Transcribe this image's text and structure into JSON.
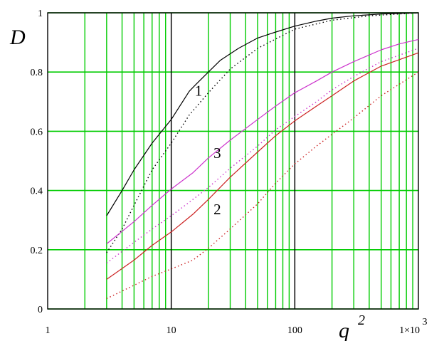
{
  "chart_data": {
    "type": "line",
    "title": "",
    "xlabel": "q",
    "xlabel_superscript": "2",
    "ylabel": "D",
    "xscale": "log",
    "xlim": [
      1,
      1000
    ],
    "ylim": [
      0,
      1
    ],
    "grid": true,
    "grid_color": "#00cc00",
    "decade_line_color": "#000000",
    "x_tick_labels": [
      "1",
      "10",
      "100",
      "1×10"
    ],
    "x_tick_label_last_superscript": "3",
    "y_tick_labels": [
      "0",
      "0.2",
      "0.4",
      "0.6",
      "0.8",
      "1"
    ],
    "y_ticks": [
      0,
      0.2,
      0.4,
      0.6,
      0.8,
      1
    ],
    "curve_labels": [
      {
        "text": "1",
        "x": 15.5,
        "y": 0.72
      },
      {
        "text": "3",
        "x": 22,
        "y": 0.51
      },
      {
        "text": "2",
        "x": 22,
        "y": 0.32
      }
    ],
    "series": [
      {
        "label": "1",
        "style": "solid",
        "color": "#000000",
        "points": [
          [
            3,
            0.315
          ],
          [
            4,
            0.4
          ],
          [
            5,
            0.47
          ],
          [
            7,
            0.56
          ],
          [
            10,
            0.64
          ],
          [
            14,
            0.735
          ],
          [
            16,
            0.76
          ],
          [
            20,
            0.8
          ],
          [
            25,
            0.84
          ],
          [
            35,
            0.88
          ],
          [
            50,
            0.915
          ],
          [
            70,
            0.935
          ],
          [
            100,
            0.955
          ],
          [
            150,
            0.972
          ],
          [
            200,
            0.982
          ],
          [
            300,
            0.99
          ],
          [
            500,
            0.996
          ],
          [
            1000,
            1.0
          ]
        ]
      },
      {
        "label": "1",
        "style": "dotted",
        "color": "#000000",
        "points": [
          [
            3,
            0.19
          ],
          [
            4,
            0.27
          ],
          [
            5,
            0.35
          ],
          [
            7,
            0.47
          ],
          [
            10,
            0.56
          ],
          [
            14,
            0.655
          ],
          [
            20,
            0.73
          ],
          [
            30,
            0.81
          ],
          [
            50,
            0.88
          ],
          [
            100,
            0.945
          ],
          [
            200,
            0.975
          ],
          [
            400,
            0.99
          ],
          [
            1000,
            1.0
          ]
        ]
      },
      {
        "label": "3",
        "style": "solid",
        "color": "#cc33cc",
        "points": [
          [
            3,
            0.22
          ],
          [
            5,
            0.295
          ],
          [
            7,
            0.35
          ],
          [
            10,
            0.405
          ],
          [
            15,
            0.46
          ],
          [
            20,
            0.51
          ],
          [
            30,
            0.57
          ],
          [
            50,
            0.64
          ],
          [
            70,
            0.685
          ],
          [
            100,
            0.73
          ],
          [
            150,
            0.77
          ],
          [
            200,
            0.8
          ],
          [
            300,
            0.835
          ],
          [
            500,
            0.875
          ],
          [
            700,
            0.895
          ],
          [
            1000,
            0.91
          ]
        ]
      },
      {
        "label": "3",
        "style": "dotted",
        "color": "#cc33cc",
        "points": [
          [
            3,
            0.155
          ],
          [
            5,
            0.225
          ],
          [
            7,
            0.27
          ],
          [
            10,
            0.315
          ],
          [
            15,
            0.37
          ],
          [
            20,
            0.41
          ],
          [
            30,
            0.475
          ],
          [
            50,
            0.55
          ],
          [
            70,
            0.605
          ],
          [
            100,
            0.65
          ],
          [
            150,
            0.7
          ],
          [
            200,
            0.74
          ],
          [
            300,
            0.785
          ],
          [
            500,
            0.835
          ],
          [
            1000,
            0.88
          ]
        ]
      },
      {
        "label": "2",
        "style": "solid",
        "color": "#cc2222",
        "points": [
          [
            3,
            0.1
          ],
          [
            5,
            0.165
          ],
          [
            7,
            0.215
          ],
          [
            10,
            0.26
          ],
          [
            15,
            0.32
          ],
          [
            20,
            0.37
          ],
          [
            30,
            0.445
          ],
          [
            50,
            0.53
          ],
          [
            70,
            0.585
          ],
          [
            100,
            0.635
          ],
          [
            150,
            0.685
          ],
          [
            200,
            0.72
          ],
          [
            300,
            0.77
          ],
          [
            500,
            0.82
          ],
          [
            1000,
            0.865
          ]
        ]
      },
      {
        "label": "2",
        "style": "dotted",
        "color": "#cc2222",
        "points": [
          [
            3,
            0.035
          ],
          [
            5,
            0.08
          ],
          [
            7,
            0.11
          ],
          [
            10,
            0.135
          ],
          [
            15,
            0.165
          ],
          [
            20,
            0.205
          ],
          [
            30,
            0.27
          ],
          [
            50,
            0.355
          ],
          [
            70,
            0.425
          ],
          [
            100,
            0.49
          ],
          [
            150,
            0.55
          ],
          [
            200,
            0.59
          ],
          [
            300,
            0.645
          ],
          [
            500,
            0.72
          ],
          [
            1000,
            0.8
          ]
        ]
      }
    ]
  }
}
